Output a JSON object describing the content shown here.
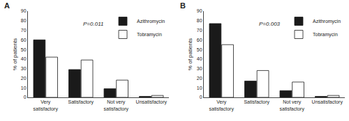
{
  "chart_data": [
    {
      "type": "bar",
      "title": "A",
      "categories": [
        "Very\nsatisfactory",
        "Satisfactory",
        "Not very\nsatisfactory",
        "Unsatisfactory"
      ],
      "series": [
        {
          "name": "Azithromycin",
          "color": "#1a1a1a",
          "values": [
            60,
            29,
            9,
            1
          ]
        },
        {
          "name": "Tobramycin",
          "color": "#ffffff",
          "values": [
            42,
            39,
            18,
            2
          ]
        }
      ],
      "ylabel": "% of patients",
      "ylim": [
        0,
        90
      ],
      "yticks": [
        0,
        10,
        20,
        30,
        40,
        50,
        60,
        70,
        80,
        90
      ],
      "grid": false,
      "legend": "upper right",
      "annotations": [
        "P=0.011"
      ]
    },
    {
      "type": "bar",
      "title": "B",
      "categories": [
        "Very\nsatisfactory",
        "Satisfactory",
        "Not very\nsatisfactory",
        "Unsatisfactory"
      ],
      "series": [
        {
          "name": "Azithromycin",
          "color": "#1a1a1a",
          "values": [
            77,
            17,
            7,
            1
          ]
        },
        {
          "name": "Tobramycin",
          "color": "#ffffff",
          "values": [
            55,
            28,
            16,
            2
          ]
        }
      ],
      "ylabel": "% of patients",
      "ylim": [
        0,
        90
      ],
      "yticks": [
        0,
        10,
        20,
        30,
        40,
        50,
        60,
        70,
        80,
        90
      ],
      "grid": false,
      "legend": "upper right",
      "annotations": [
        "P=0.003"
      ]
    }
  ]
}
